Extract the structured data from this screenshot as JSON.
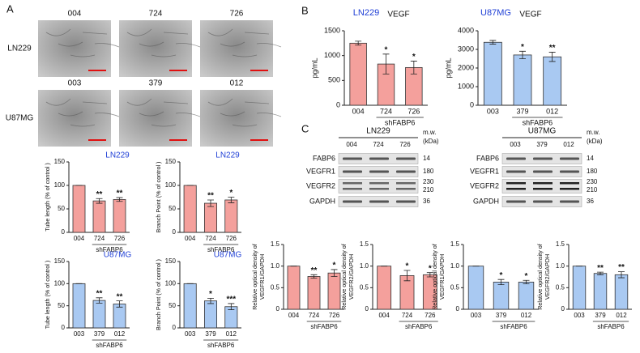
{
  "panels": [
    "A",
    "B",
    "C"
  ],
  "micrographs": [
    {
      "label": "LN229",
      "samples": [
        "004",
        "724",
        "726"
      ]
    },
    {
      "label": "U87MG",
      "samples": [
        "003",
        "379",
        "012"
      ]
    }
  ],
  "blots": [
    {
      "title": "LN229",
      "lanes": [
        "004",
        "724",
        "726"
      ],
      "mw_label": [
        "m.w.",
        "(kDa)"
      ],
      "rows": [
        {
          "name": "FABP6",
          "mw": [
            "14"
          ]
        },
        {
          "name": "VEGFR1",
          "mw": [
            "180"
          ]
        },
        {
          "name": "VEGFR2",
          "mw": [
            "230",
            "210"
          ]
        },
        {
          "name": "GAPDH",
          "mw": [
            "36"
          ]
        }
      ]
    },
    {
      "title": "U87MG",
      "lanes": [
        "003",
        "379",
        "012"
      ],
      "mw_label": [
        "m.w.",
        "(kDa)"
      ],
      "rows": [
        {
          "name": "FABP6",
          "mw": [
            "14"
          ]
        },
        {
          "name": "VEGFR1",
          "mw": [
            "180"
          ]
        },
        {
          "name": "VEGFR2",
          "mw": [
            "230",
            "210"
          ]
        },
        {
          "name": "GAPDH",
          "mw": [
            "36"
          ]
        }
      ]
    }
  ],
  "chart_data": [
    {
      "type": "bar",
      "title": "LN229",
      "ylabel": [
        "Tube length (% of control )"
      ],
      "categories": [
        "004",
        "724",
        "726"
      ],
      "group_label": "shFABP6",
      "values": [
        100,
        67,
        70
      ],
      "errors": [
        0,
        5,
        4
      ],
      "significance": [
        null,
        "**",
        "**"
      ],
      "color": "#f4a09c",
      "ylim": [
        0,
        150
      ],
      "yticks": [
        0,
        50,
        100,
        150
      ]
    },
    {
      "type": "bar",
      "title": "LN229",
      "ylabel": [
        "Branch Point (% of control )"
      ],
      "categories": [
        "004",
        "724",
        "726"
      ],
      "group_label": "shFABP6",
      "values": [
        100,
        62,
        69
      ],
      "errors": [
        0,
        7,
        6
      ],
      "significance": [
        null,
        "**",
        "*"
      ],
      "color": "#f4a09c",
      "ylim": [
        0,
        150
      ],
      "yticks": [
        0,
        50,
        100,
        150
      ]
    },
    {
      "type": "bar",
      "title": "U87MG",
      "ylabel": [
        "Tube length (% of control )"
      ],
      "categories": [
        "003",
        "379",
        "012"
      ],
      "group_label": "shFABP6",
      "values": [
        100,
        62,
        54
      ],
      "errors": [
        0,
        6,
        7
      ],
      "significance": [
        null,
        "**",
        "**"
      ],
      "color": "#a9c9f2",
      "ylim": [
        0,
        150
      ],
      "yticks": [
        0,
        50,
        100,
        150
      ]
    },
    {
      "type": "bar",
      "title": "U87MG",
      "ylabel": [
        "Branch Point (% of control )"
      ],
      "categories": [
        "003",
        "379",
        "012"
      ],
      "group_label": "shFABP6",
      "values": [
        100,
        61,
        48
      ],
      "errors": [
        0,
        6,
        7
      ],
      "significance": [
        null,
        "*",
        "***"
      ],
      "color": "#a9c9f2",
      "ylim": [
        0,
        150
      ],
      "yticks": [
        0,
        50,
        100,
        150
      ]
    },
    {
      "type": "bar",
      "title": "LN229",
      "subtitle": "VEGF",
      "ylabel": [
        "pg/mL"
      ],
      "categories": [
        "004",
        "724",
        "726"
      ],
      "group_label": "shFABP6",
      "values": [
        1250,
        830,
        760
      ],
      "errors": [
        40,
        200,
        130
      ],
      "significance": [
        null,
        "*",
        "*"
      ],
      "color": "#f4a09c",
      "ylim": [
        0,
        1500
      ],
      "yticks": [
        0,
        500,
        1000,
        1500
      ]
    },
    {
      "type": "bar",
      "title": "U87MG",
      "subtitle": "VEGF",
      "ylabel": [
        "pg/mL"
      ],
      "categories": [
        "003",
        "379",
        "012"
      ],
      "group_label": "shFABP6",
      "values": [
        3380,
        2700,
        2600
      ],
      "errors": [
        100,
        200,
        250
      ],
      "significance": [
        null,
        "*",
        "**"
      ],
      "color": "#a9c9f2",
      "ylim": [
        0,
        4000
      ],
      "yticks": [
        0,
        1000,
        2000,
        3000,
        4000
      ]
    },
    {
      "type": "bar",
      "ylabel": [
        "Relative optical density of",
        "VEGFR1/GAPDH"
      ],
      "categories": [
        "004",
        "724",
        "726"
      ],
      "group_label": "shFABP6",
      "values": [
        1.0,
        0.76,
        0.84
      ],
      "errors": [
        0,
        0.04,
        0.08
      ],
      "significance": [
        null,
        "**",
        "*"
      ],
      "color": "#f4a09c",
      "ylim": [
        0,
        1.5
      ],
      "yticks": [
        0,
        0.5,
        {
          "value": 1,
          "label": "1.0"
        },
        1.5
      ]
    },
    {
      "type": "bar",
      "ylabel": [
        "Relative optical density of",
        "VEGFR2/GAPDH"
      ],
      "categories": [
        "004",
        "724",
        "726"
      ],
      "group_label": "shFABP6",
      "values": [
        1.0,
        0.78,
        0.8
      ],
      "errors": [
        0,
        0.12,
        0.05
      ],
      "significance": [
        null,
        "*",
        "*"
      ],
      "color": "#f4a09c",
      "ylim": [
        0,
        1.5
      ],
      "yticks": [
        0,
        0.5,
        {
          "value": 1,
          "label": "1.0"
        },
        1.5
      ]
    },
    {
      "type": "bar",
      "ylabel": [
        "Relative optical density of",
        "VEGFR1/GAPDH"
      ],
      "categories": [
        "003",
        "379",
        "012"
      ],
      "group_label": "shFABP6",
      "values": [
        1.0,
        0.63,
        0.63
      ],
      "errors": [
        0,
        0.06,
        0.04
      ],
      "significance": [
        null,
        "*",
        "*"
      ],
      "color": "#a9c9f2",
      "ylim": [
        0,
        1.5
      ],
      "yticks": [
        0,
        0.5,
        {
          "value": 1,
          "label": "1.0"
        },
        1.5
      ]
    },
    {
      "type": "bar",
      "ylabel": [
        "Relative optical density of",
        "VEGFR2/GAPDH"
      ],
      "categories": [
        "003",
        "379",
        "012"
      ],
      "group_label": "shFABP6",
      "values": [
        1.0,
        0.83,
        0.8
      ],
      "errors": [
        0,
        0.03,
        0.07
      ],
      "significance": [
        null,
        "**",
        "**"
      ],
      "color": "#a9c9f2",
      "ylim": [
        0,
        1.5
      ],
      "yticks": [
        0,
        0.5,
        {
          "value": 1,
          "label": "1.0"
        },
        1.5
      ]
    }
  ]
}
